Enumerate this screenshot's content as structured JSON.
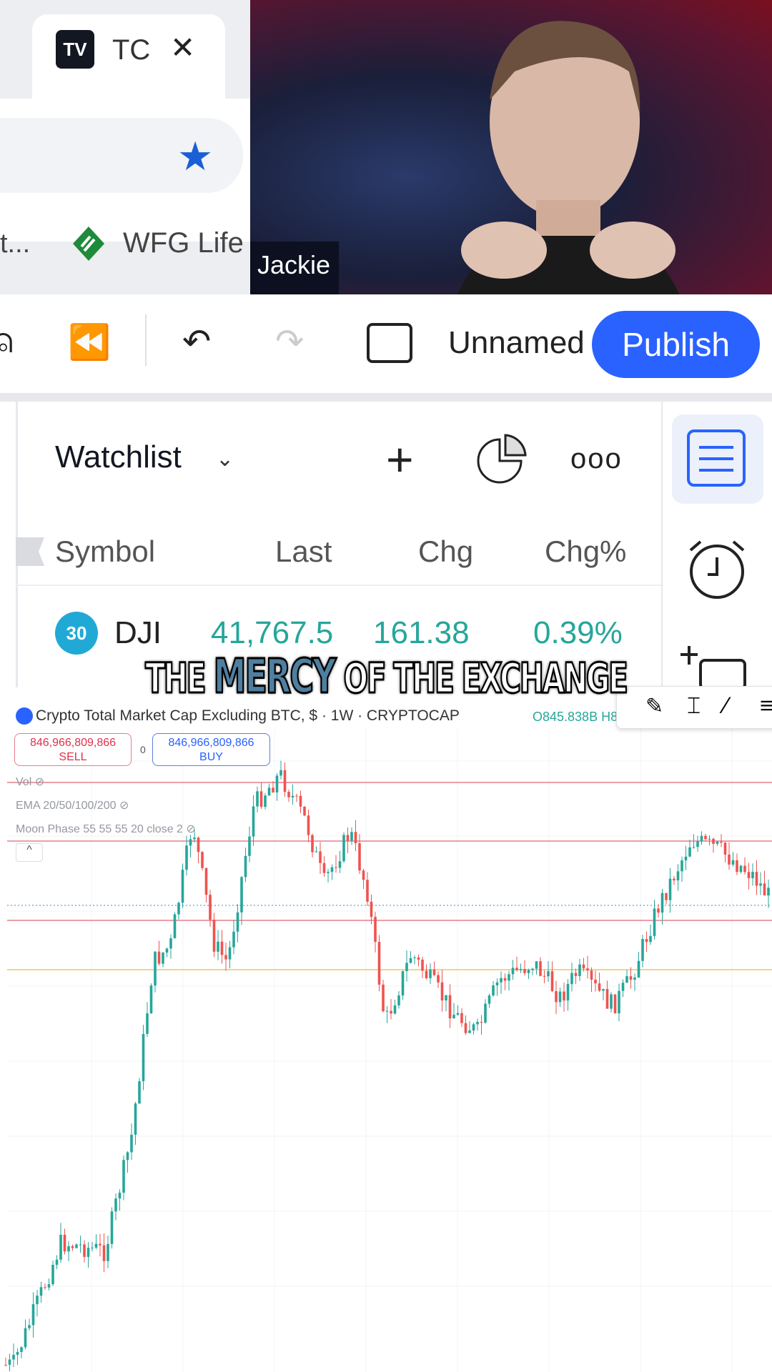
{
  "browser": {
    "tab_title": "TC",
    "tab_logo": "TV",
    "bookmark_truncated": "t...",
    "bookmark": "WFG Life",
    "icons": [
      "tradingview-logo",
      "close-icon",
      "star-icon",
      "wfg-logo"
    ]
  },
  "video": {
    "participant_name": "Jackie"
  },
  "toolbar": {
    "layout_name": "Unnamed",
    "publish_label": "Publish",
    "icons": [
      "alert-add-icon",
      "replay-icon",
      "undo-icon",
      "redo-icon",
      "fullscreen-icon"
    ]
  },
  "watchlist": {
    "title": "Watchlist",
    "columns": [
      "Symbol",
      "Last",
      "Chg",
      "Chg%"
    ],
    "rows": [
      {
        "badge": "30",
        "symbol": "DJI",
        "last": "41,767.5",
        "chg": "161.38",
        "chg_pct": "0.39%"
      }
    ]
  },
  "caption": {
    "pre": "THE",
    "highlight": "MERCY",
    "post": "OF THE EXCHANGE"
  },
  "chart": {
    "symbol_title": "Crypto Total Market Cap Excluding BTC, $ · 1W · CRYPTOCAP",
    "ohlc_partial": "O845.838B H8",
    "sell": {
      "price": "846,966,809,866",
      "label": "SELL"
    },
    "spread": "0",
    "buy": {
      "price": "846,966,809,866",
      "label": "BUY"
    },
    "indicators": [
      "Vol",
      "EMA 20/50/100/200",
      "Moon Phase 55 55 55 20 close 2"
    ],
    "colors": {
      "up": "#26a69a",
      "down": "#ef5350",
      "level_red": "#e57e8c",
      "level_yellow": "#e8c56a",
      "level_dotted": "#7fb0d8"
    }
  }
}
